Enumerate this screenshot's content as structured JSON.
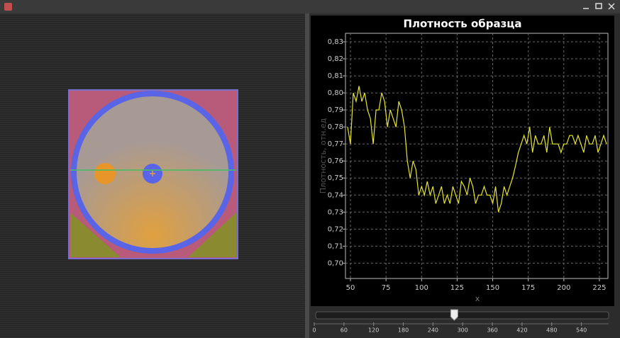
{
  "chart_data": {
    "type": "line",
    "title": "Плотность образца",
    "xlabel": "x",
    "ylabel": "Плотность, отн.ед",
    "color": "#e6e62e",
    "grid": true,
    "xlim": [
      46.5,
      231
    ],
    "ylim": [
      0.691,
      0.835
    ],
    "xticks": [
      50,
      75,
      100,
      125,
      150,
      175,
      200,
      225
    ],
    "yticks": [
      {
        "value": 0.7,
        "label": "0,70"
      },
      {
        "value": 0.71,
        "label": "0,71"
      },
      {
        "value": 0.72,
        "label": "0,72"
      },
      {
        "value": 0.73,
        "label": "0,73"
      },
      {
        "value": 0.74,
        "label": "0,74"
      },
      {
        "value": 0.75,
        "label": "0,75"
      },
      {
        "value": 0.76,
        "label": "0,76"
      },
      {
        "value": 0.77,
        "label": "0,77"
      },
      {
        "value": 0.78,
        "label": "0,78"
      },
      {
        "value": 0.79,
        "label": "0,79"
      },
      {
        "value": 0.8,
        "label": "0,80"
      },
      {
        "value": 0.81,
        "label": "0,81"
      },
      {
        "value": 0.82,
        "label": "0,82"
      },
      {
        "value": 0.83,
        "label": "0,83"
      }
    ],
    "x": [
      48,
      50,
      52,
      54,
      56,
      58,
      60,
      62,
      64,
      66,
      68,
      70,
      72,
      74,
      76,
      78,
      80,
      82,
      84,
      86,
      88,
      90,
      92,
      94,
      96,
      98,
      100,
      102,
      104,
      106,
      108,
      110,
      112,
      114,
      116,
      118,
      120,
      122,
      124,
      126,
      128,
      130,
      132,
      134,
      136,
      138,
      140,
      142,
      144,
      146,
      148,
      150,
      152,
      154,
      156,
      158,
      160,
      162,
      164,
      166,
      168,
      170,
      172,
      174,
      176,
      178,
      180,
      182,
      184,
      186,
      188,
      190,
      192,
      194,
      196,
      198,
      200,
      202,
      204,
      206,
      208,
      210,
      212,
      214,
      216,
      218,
      220,
      222,
      224,
      226,
      228,
      230
    ],
    "values": [
      0.78,
      0.77,
      0.8,
      0.795,
      0.804,
      0.795,
      0.8,
      0.79,
      0.785,
      0.77,
      0.79,
      0.79,
      0.8,
      0.795,
      0.78,
      0.79,
      0.785,
      0.78,
      0.795,
      0.79,
      0.78,
      0.76,
      0.75,
      0.76,
      0.755,
      0.74,
      0.745,
      0.74,
      0.748,
      0.74,
      0.745,
      0.735,
      0.74,
      0.745,
      0.735,
      0.74,
      0.735,
      0.745,
      0.74,
      0.735,
      0.748,
      0.745,
      0.74,
      0.75,
      0.745,
      0.735,
      0.74,
      0.74,
      0.745,
      0.74,
      0.74,
      0.735,
      0.745,
      0.73,
      0.735,
      0.745,
      0.74,
      0.745,
      0.75,
      0.757,
      0.765,
      0.77,
      0.775,
      0.77,
      0.78,
      0.765,
      0.775,
      0.77,
      0.77,
      0.775,
      0.765,
      0.78,
      0.77,
      0.77,
      0.77,
      0.765,
      0.77,
      0.77,
      0.775,
      0.775,
      0.77,
      0.775,
      0.77,
      0.765,
      0.775,
      0.77,
      0.77,
      0.775,
      0.765,
      0.77,
      0.775,
      0.77
    ]
  },
  "slider": {
    "lim": [
      0,
      595
    ],
    "ticks": [
      0,
      60,
      120,
      180,
      240,
      300,
      360,
      420,
      480,
      540
    ],
    "value": 283
  }
}
